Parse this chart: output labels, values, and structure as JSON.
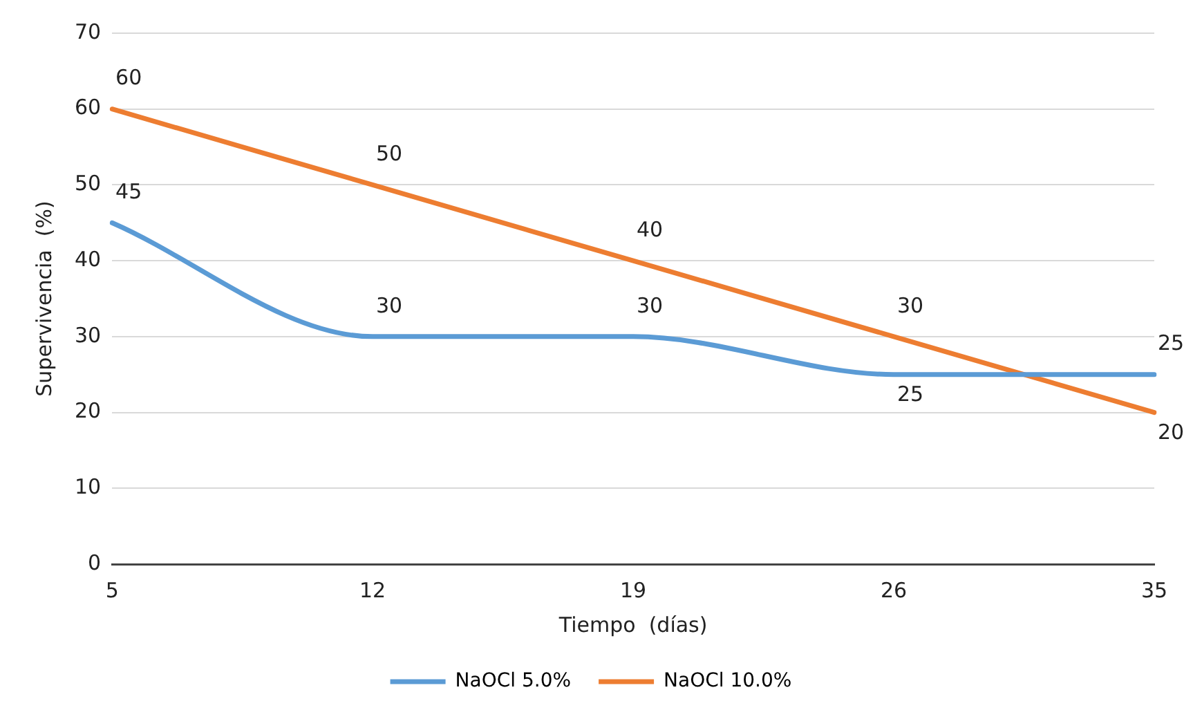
{
  "chart_data": {
    "type": "line",
    "xlabel": "Tiempo  (días)",
    "ylabel": "Supervivencia  (%)",
    "categories": [
      "5",
      "12",
      "19",
      "26",
      "35"
    ],
    "series": [
      {
        "name": "NaOCl 5.0%",
        "color": "#5b9bd5",
        "values": [
          45,
          30,
          30,
          25,
          25
        ]
      },
      {
        "name": "NaOCl 10.0%",
        "color": "#ed7d31",
        "values": [
          60,
          50,
          40,
          30,
          20
        ]
      }
    ],
    "ylim": [
      0,
      70
    ],
    "yticks": [
      0,
      10,
      20,
      30,
      40,
      50,
      60,
      70
    ],
    "grid": "y",
    "legend": "bottom",
    "data_labels": true,
    "marker": "none",
    "line_style": "solid"
  }
}
